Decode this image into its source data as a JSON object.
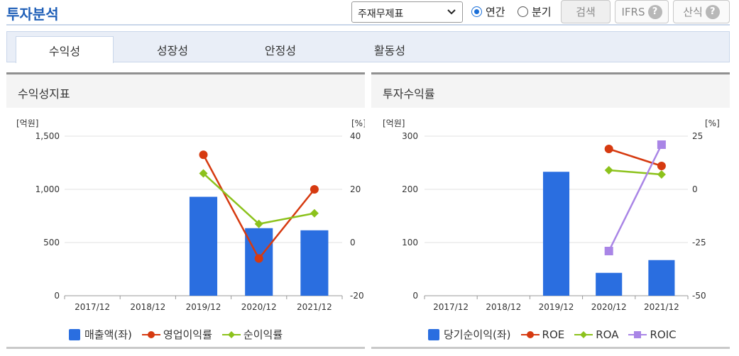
{
  "header": {
    "title": "투자분석",
    "select_value": "주재무제표",
    "radio_annual": "연간",
    "radio_quarter": "분기",
    "search_label": "검색",
    "ifrs_label": "IFRS",
    "formula_label": "산식"
  },
  "tabs": [
    "수익성",
    "성장성",
    "안정성",
    "활동성"
  ],
  "colors": {
    "bar": "#2a6ee0",
    "red": "#d63a10",
    "green": "#8cc21c",
    "purple": "#a985e6"
  },
  "chart_data": [
    {
      "type": "bar",
      "title": "수익성지표",
      "left_unit": "[억원]",
      "right_unit": "[%]",
      "categories": [
        "2017/12",
        "2018/12",
        "2019/12",
        "2020/12",
        "2021/12"
      ],
      "y_left": {
        "ylim": [
          0,
          1500
        ],
        "ticks": [
          0,
          500,
          1000,
          1500
        ],
        "tick_labels": [
          "0",
          "500",
          "1,000",
          "1,500"
        ]
      },
      "y_right": {
        "ylim": [
          -20,
          40
        ],
        "ticks": [
          -20,
          0,
          20,
          40
        ],
        "tick_labels": [
          "-20",
          "0",
          "20",
          "40"
        ]
      },
      "series": [
        {
          "name": "매출액(좌)",
          "kind": "bar",
          "axis": "left",
          "color": "#2a6ee0",
          "values": [
            null,
            null,
            930,
            635,
            615
          ]
        },
        {
          "name": "영업이익률",
          "kind": "line",
          "axis": "right",
          "color": "#d63a10",
          "values": [
            null,
            null,
            33,
            -6,
            20
          ]
        },
        {
          "name": "순이익률",
          "kind": "line",
          "axis": "right",
          "color": "#8cc21c",
          "values": [
            null,
            null,
            26,
            7,
            11
          ]
        }
      ]
    },
    {
      "type": "bar",
      "title": "투자수익률",
      "left_unit": "[억원]",
      "right_unit": "[%]",
      "categories": [
        "2017/12",
        "2018/12",
        "2019/12",
        "2020/12",
        "2021/12"
      ],
      "y_left": {
        "ylim": [
          0,
          300
        ],
        "ticks": [
          0,
          100,
          200,
          300
        ],
        "tick_labels": [
          "0",
          "100",
          "200",
          "300"
        ]
      },
      "y_right": {
        "ylim": [
          -50,
          25
        ],
        "ticks": [
          -50,
          -25,
          0,
          25
        ],
        "tick_labels": [
          "-50",
          "-25",
          "0",
          "25"
        ]
      },
      "series": [
        {
          "name": "당기순이익(좌)",
          "kind": "bar",
          "axis": "left",
          "color": "#2a6ee0",
          "values": [
            null,
            null,
            233,
            43,
            67
          ]
        },
        {
          "name": "ROE",
          "kind": "line",
          "axis": "right",
          "color": "#d63a10",
          "values": [
            null,
            null,
            null,
            19,
            11
          ]
        },
        {
          "name": "ROA",
          "kind": "line",
          "axis": "right",
          "color": "#8cc21c",
          "values": [
            null,
            null,
            null,
            9,
            7
          ]
        },
        {
          "name": "ROIC",
          "kind": "line",
          "axis": "right",
          "color": "#a985e6",
          "values": [
            null,
            null,
            null,
            -29,
            21
          ]
        }
      ]
    }
  ]
}
